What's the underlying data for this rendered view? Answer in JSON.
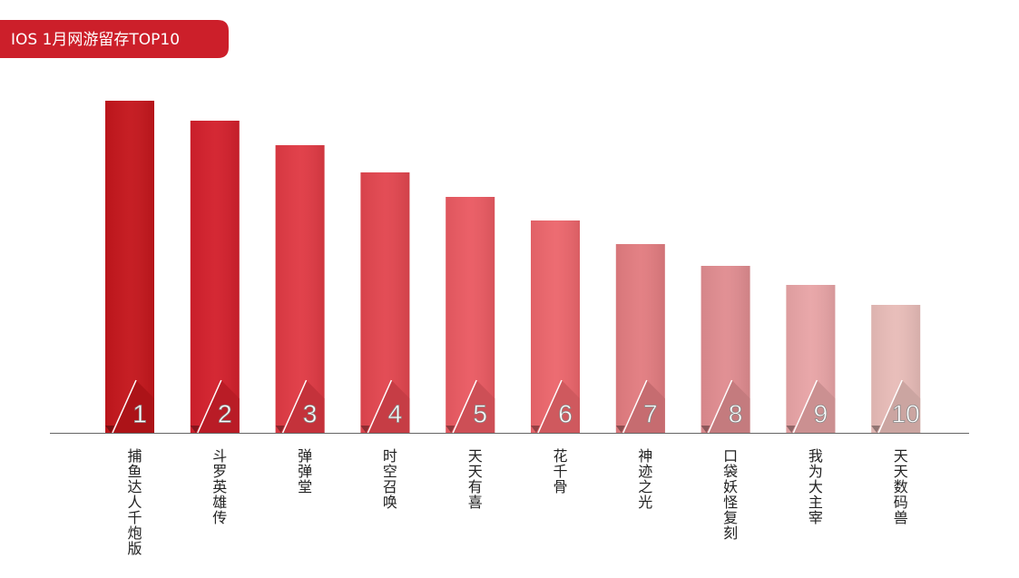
{
  "chart_data": {
    "type": "bar",
    "title": "IOS 1月网游留存TOP10",
    "categories": [
      "捕鱼达人千炮版",
      "斗罗英雄传",
      "弹弹堂",
      "时空召唤",
      "天天有喜",
      "花千骨",
      "神迹之光",
      "口袋妖怪复刻",
      "我为大主宰",
      "天天数码兽"
    ],
    "ranks": [
      1,
      2,
      3,
      4,
      5,
      6,
      7,
      8,
      9,
      10
    ],
    "values": [
      366,
      344,
      317,
      287,
      260,
      234,
      208,
      184,
      163,
      141
    ],
    "colors": [
      "#c4161c",
      "#d3202c",
      "#e03a44",
      "#e2464f",
      "#ea5a62",
      "#ec666c",
      "#e27c80",
      "#e08c90",
      "#e8a4a6",
      "#e8bcb8"
    ]
  }
}
